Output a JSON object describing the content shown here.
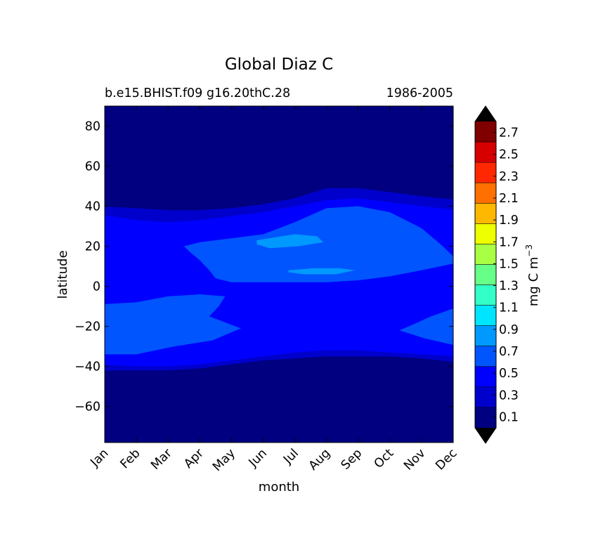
{
  "chart_data": {
    "type": "heatmap",
    "title": "Global Diaz C",
    "subtitle_left": "b.e15.BHIST.f09 g16.20thC.28",
    "subtitle_right": "1986-2005",
    "xlabel": "month",
    "ylabel": "latitude",
    "x_ticks": [
      "Jan",
      "Feb",
      "Mar",
      "Apr",
      "May",
      "Jun",
      "Jul",
      "Aug",
      "Sep",
      "Oct",
      "Nov",
      "Dec"
    ],
    "y_ticks": [
      80,
      60,
      40,
      20,
      0,
      -20,
      -40,
      -60
    ],
    "y_tick_labels": [
      "80",
      "60",
      "40",
      "20",
      "0",
      "−20",
      "−40",
      "−60"
    ],
    "ylim": [
      -78,
      90
    ],
    "xlim": [
      0,
      11
    ],
    "colorbar": {
      "label_main": "mg C m",
      "label_exp": "−3",
      "levels": [
        0,
        0.1,
        0.2,
        0.3,
        0.4,
        0.5,
        0.6,
        0.7,
        0.8,
        0.9,
        1.0,
        1.1,
        1.2,
        1.3,
        1.4,
        1.5,
        1.6,
        1.7,
        1.8,
        1.9,
        2.0,
        2.1,
        2.2,
        2.3,
        2.4,
        2.5,
        2.6,
        2.7,
        2.8
      ],
      "tick_values": [
        0.1,
        0.3,
        0.5,
        0.7,
        0.9,
        1.1,
        1.3,
        1.5,
        1.7,
        1.9,
        2.1,
        2.3,
        2.5,
        2.7
      ],
      "tick_labels": [
        "0.1",
        "0.3",
        "0.5",
        "0.7",
        "0.9",
        "1.1",
        "1.3",
        "1.5",
        "1.7",
        "1.9",
        "2.1",
        "2.3",
        "2.5",
        "2.7"
      ],
      "band_colors": [
        "#000080",
        "#0000cd",
        "#0000ff",
        "#0055ff",
        "#0099ff",
        "#00e5ff",
        "#33ffc8",
        "#66ff88",
        "#a8ff44",
        "#eeff00",
        "#ffb800",
        "#ff7000",
        "#ff2800",
        "#d60000",
        "#800000"
      ],
      "under_color": "#000000",
      "over_color": "#000000"
    },
    "contours": [
      {
        "name": "level-0.1",
        "color": "#0000cd",
        "upper": [
          [
            0,
            40
          ],
          [
            1,
            39
          ],
          [
            2,
            38
          ],
          [
            3,
            38
          ],
          [
            4,
            39
          ],
          [
            5,
            41
          ],
          [
            6,
            44
          ],
          [
            7,
            49
          ],
          [
            8,
            49
          ],
          [
            9,
            47
          ],
          [
            10,
            45
          ],
          [
            11,
            43
          ]
        ],
        "lower": [
          [
            11,
            -38
          ],
          [
            10,
            -36
          ],
          [
            9,
            -35
          ],
          [
            8,
            -35
          ],
          [
            7,
            -35
          ],
          [
            6,
            -36
          ],
          [
            5,
            -37
          ],
          [
            4,
            -39
          ],
          [
            3,
            -41
          ],
          [
            2,
            -42
          ],
          [
            1,
            -42
          ],
          [
            0,
            -42
          ]
        ]
      },
      {
        "name": "level-0.3",
        "color": "#0000ff",
        "upper": [
          [
            0,
            36
          ],
          [
            1,
            33
          ],
          [
            2,
            32
          ],
          [
            3,
            33
          ],
          [
            4,
            35
          ],
          [
            5,
            37
          ],
          [
            6,
            40
          ],
          [
            7,
            43
          ],
          [
            8,
            44
          ],
          [
            9,
            42
          ],
          [
            10,
            40
          ],
          [
            11,
            38
          ]
        ],
        "lower": [
          [
            11,
            -35
          ],
          [
            10,
            -34
          ],
          [
            9,
            -33
          ],
          [
            8,
            -32
          ],
          [
            7,
            -32
          ],
          [
            6,
            -33
          ],
          [
            5,
            -35
          ],
          [
            4,
            -37
          ],
          [
            3,
            -39
          ],
          [
            2,
            -40
          ],
          [
            1,
            -40
          ],
          [
            0,
            -39
          ]
        ]
      },
      {
        "name": "level-0.5-north",
        "color": "#0055ff",
        "points": [
          [
            2.5,
            20
          ],
          [
            3,
            22
          ],
          [
            4,
            24
          ],
          [
            5,
            26
          ],
          [
            6,
            32
          ],
          [
            7,
            39
          ],
          [
            8,
            40
          ],
          [
            9,
            37
          ],
          [
            10,
            29
          ],
          [
            10.6,
            21
          ],
          [
            11,
            12
          ],
          [
            10.6,
            10
          ],
          [
            10,
            8
          ],
          [
            9,
            5
          ],
          [
            8,
            3
          ],
          [
            7,
            2
          ],
          [
            6,
            2
          ],
          [
            5,
            2
          ],
          [
            4,
            2
          ],
          [
            3.5,
            4
          ],
          [
            3.3,
            8
          ],
          [
            3,
            13
          ],
          [
            2.7,
            17
          ]
        ]
      },
      {
        "name": "level-0.5-south-west",
        "color": "#0055ff",
        "points": [
          [
            0,
            -9
          ],
          [
            1,
            -8
          ],
          [
            2,
            -5
          ],
          [
            3,
            -4
          ],
          [
            3.8,
            -5
          ],
          [
            3.6,
            -10
          ],
          [
            3.3,
            -15
          ],
          [
            4.3,
            -21
          ],
          [
            3.4,
            -27
          ],
          [
            2.2,
            -30
          ],
          [
            1,
            -34
          ],
          [
            0,
            -34
          ]
        ]
      },
      {
        "name": "level-0.5-south-east",
        "color": "#0055ff",
        "points": [
          [
            11,
            -10
          ],
          [
            10.3,
            -15
          ],
          [
            9.6,
            -20
          ],
          [
            9.3,
            -22
          ],
          [
            10.1,
            -26
          ],
          [
            11,
            -30
          ]
        ]
      },
      {
        "name": "level-0.7-a",
        "color": "#0099ff",
        "points": [
          [
            4.8,
            23
          ],
          [
            5.6,
            25
          ],
          [
            6,
            26
          ],
          [
            6.7,
            25
          ],
          [
            6.9,
            22
          ],
          [
            6.1,
            20
          ],
          [
            5.2,
            19
          ],
          [
            4.8,
            21
          ]
        ]
      },
      {
        "name": "level-0.7-b",
        "color": "#0099ff",
        "points": [
          [
            5.8,
            8
          ],
          [
            6.6,
            9
          ],
          [
            7.4,
            9
          ],
          [
            7.9,
            8
          ],
          [
            7.3,
            6
          ],
          [
            6.3,
            6
          ],
          [
            5.8,
            7
          ]
        ]
      }
    ]
  }
}
